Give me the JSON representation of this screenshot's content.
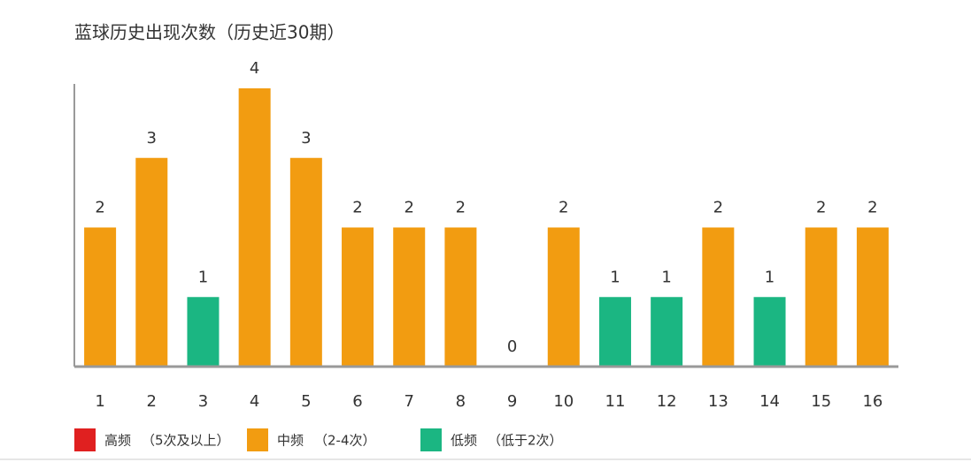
{
  "chart_data": {
    "type": "bar",
    "title": "蓝球历史出现次数（历史近30期）",
    "categories": [
      "1",
      "2",
      "3",
      "4",
      "5",
      "6",
      "7",
      "8",
      "9",
      "10",
      "11",
      "12",
      "13",
      "14",
      "15",
      "16"
    ],
    "values": [
      2,
      3,
      1,
      4,
      3,
      2,
      2,
      2,
      0,
      2,
      1,
      1,
      2,
      1,
      2,
      2
    ],
    "colors": [
      "#f29c11",
      "#f29c11",
      "#1bb682",
      "#f29c11",
      "#f29c11",
      "#f29c11",
      "#f29c11",
      "#f29c11",
      "#1bb682",
      "#f29c11",
      "#1bb682",
      "#1bb682",
      "#f29c11",
      "#1bb682",
      "#f29c11",
      "#f29c11"
    ],
    "ylim": [
      0,
      4
    ],
    "legend": [
      {
        "name": "高频",
        "note": "（5次及以上）",
        "color": "#e02020"
      },
      {
        "name": "中频",
        "note": "（2-4次）",
        "color": "#f29c11"
      },
      {
        "name": "低频",
        "note": "（低于2次）",
        "color": "#1bb682"
      }
    ]
  }
}
